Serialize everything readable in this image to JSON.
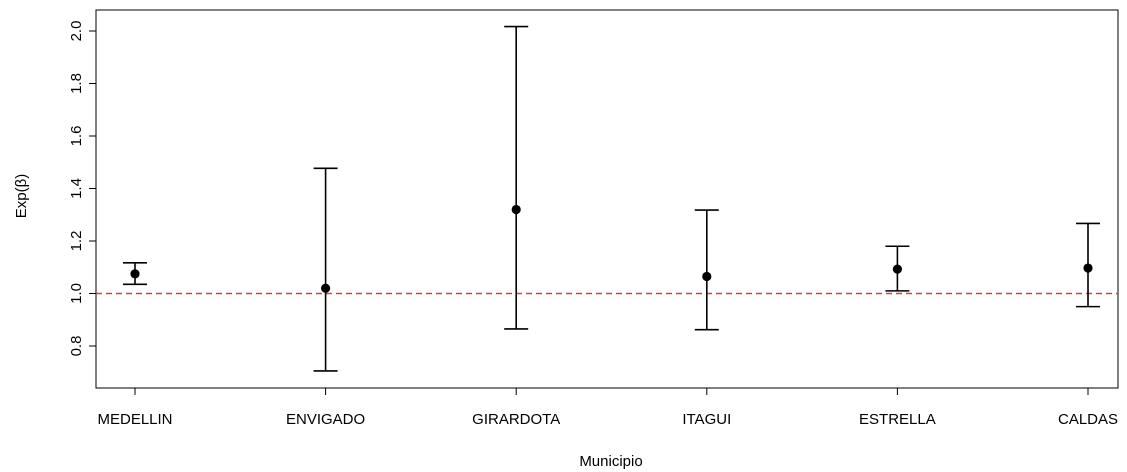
{
  "chart_data": {
    "type": "scatter",
    "title": "",
    "xlabel": "Municipio",
    "ylabel": "Exp(β)",
    "categories": [
      "MEDELLIN",
      "ENVIGADO",
      "GIRARDOTA",
      "ITAGUI",
      "ESTRELLA",
      "CALDAS"
    ],
    "series": [
      {
        "estimate": [
          1.075,
          1.02,
          1.32,
          1.065,
          1.093,
          1.097
        ],
        "lower": [
          1.035,
          0.705,
          0.865,
          0.862,
          1.01,
          0.95
        ],
        "upper": [
          1.117,
          1.477,
          2.017,
          1.318,
          1.18,
          1.267
        ]
      }
    ],
    "yticks": [
      "0.8",
      "1.0",
      "1.2",
      "1.4",
      "1.6",
      "1.8",
      "2.0"
    ],
    "ylim": [
      0.64,
      2.08
    ],
    "reference_line": {
      "y": 1.0,
      "color": "#e8393f",
      "style": "dashed"
    },
    "grid": false,
    "legend": "none"
  }
}
